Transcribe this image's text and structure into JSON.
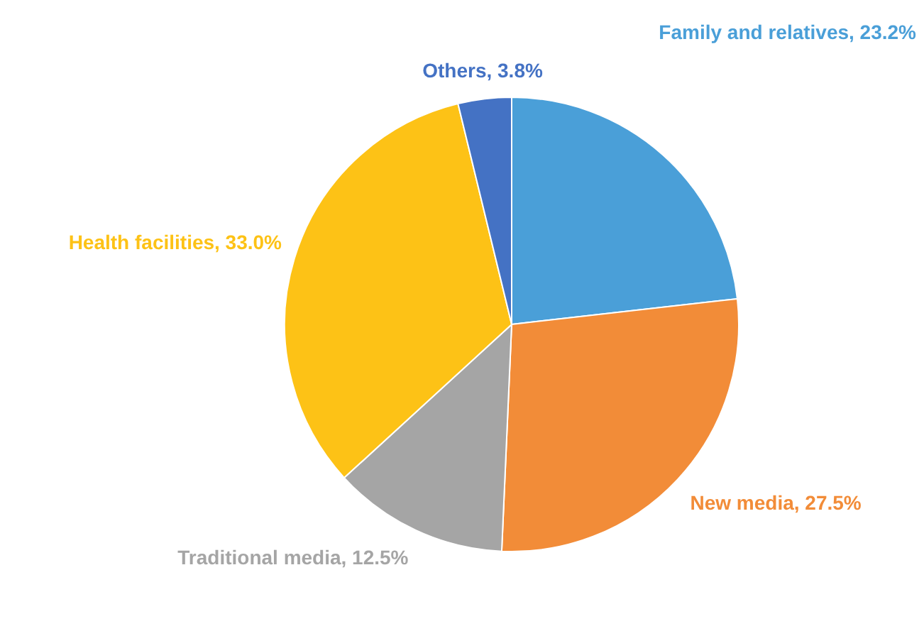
{
  "chart_data": {
    "type": "pie",
    "categories": [
      "Family and relatives",
      "New media",
      "Traditional media",
      "Health facilities",
      "Others"
    ],
    "values": [
      23.2,
      27.5,
      12.5,
      33.0,
      3.8
    ],
    "value_labels": [
      "23.2%",
      "27.5%",
      "12.5%",
      "33.0%",
      "3.8%"
    ],
    "colors": [
      "#4a9fd8",
      "#f28c38",
      "#a5a5a5",
      "#fdc216",
      "#4472c4"
    ]
  }
}
